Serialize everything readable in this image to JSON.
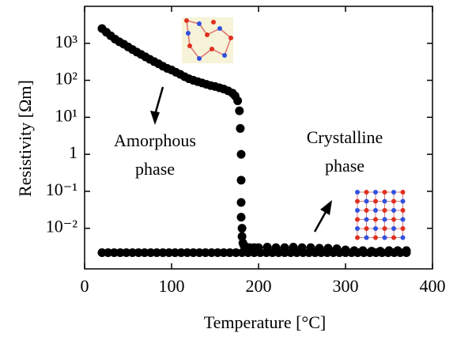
{
  "chart_data": {
    "type": "scatter",
    "xlabel": "Temperature [°C]",
    "ylabel": "Resistivity [Ωm]",
    "annotations": [
      [
        "Amorphous",
        "phase"
      ],
      [
        "Crystalline",
        "phase"
      ]
    ],
    "x": [
      20,
      25,
      30,
      35,
      40,
      45,
      50,
      55,
      60,
      65,
      70,
      75,
      80,
      85,
      90,
      95,
      100,
      105,
      110,
      115,
      120,
      125,
      130,
      135,
      140,
      145,
      150,
      155,
      160,
      165,
      170,
      173,
      176,
      178,
      179,
      180,
      180,
      180,
      180,
      181,
      181,
      182,
      183,
      184,
      186,
      190,
      195,
      200,
      210,
      220,
      230,
      240,
      250,
      260,
      270,
      280,
      290,
      300,
      310,
      320,
      330,
      340,
      350,
      360,
      370,
      20,
      27,
      34,
      41,
      48,
      55,
      62,
      69,
      76,
      83,
      90,
      97,
      104,
      111,
      118,
      125,
      132,
      139,
      146,
      153,
      160,
      167,
      174,
      181,
      188,
      195,
      202,
      209,
      216,
      223,
      230,
      237,
      244,
      251,
      258,
      265,
      272,
      279,
      286,
      293,
      300,
      307,
      314,
      321,
      328,
      335,
      342,
      349,
      356,
      363,
      370
    ],
    "values": [
      2500,
      2000,
      1600,
      1300,
      1100,
      950,
      800,
      680,
      580,
      500,
      430,
      370,
      320,
      280,
      240,
      210,
      190,
      165,
      145,
      125,
      110,
      100,
      92,
      85,
      78,
      72,
      68,
      63,
      58,
      52,
      45,
      38,
      28,
      15,
      5,
      1,
      0.2,
      0.05,
      0.02,
      0.01,
      0.006,
      0.004,
      0.0035,
      0.0033,
      0.0031,
      0.003,
      0.003,
      0.003,
      0.0031,
      0.003,
      0.003,
      0.0031,
      0.003,
      0.003,
      0.0029,
      0.0029,
      0.0028,
      0.0026,
      0.0025,
      0.0025,
      0.0024,
      0.0024,
      0.0025,
      0.0025,
      0.0025,
      0.0022,
      0.0022,
      0.0022,
      0.0022,
      0.0022,
      0.0022,
      0.0022,
      0.0022,
      0.0022,
      0.0022,
      0.0022,
      0.0022,
      0.0022,
      0.0022,
      0.0022,
      0.0022,
      0.0022,
      0.0022,
      0.0022,
      0.0022,
      0.0022,
      0.0022,
      0.0022,
      0.0022,
      0.0022,
      0.0022,
      0.0022,
      0.0022,
      0.0022,
      0.0022,
      0.0022,
      0.0022,
      0.0022,
      0.0022,
      0.0022,
      0.0022,
      0.0022,
      0.0022,
      0.0022,
      0.0022,
      0.0022,
      0.0022,
      0.0022,
      0.0022,
      0.0022,
      0.0022,
      0.0022,
      0.0022,
      0.0022,
      0.0022,
      0.0022
    ],
    "color": "#000000",
    "xlim": [
      0,
      400
    ],
    "xticks": [
      0,
      100,
      200,
      300,
      400
    ],
    "ylim": [
      0.0008,
      10000
    ],
    "yscale": "log",
    "yticks": [
      {
        "value": 1000,
        "label": "10³"
      },
      {
        "value": 100,
        "label": "10²"
      },
      {
        "value": 10,
        "label": "10¹"
      },
      1,
      {
        "value": 0.1,
        "label": "10⁻¹"
      },
      {
        "value": 0.01,
        "label": "10⁻²"
      }
    ]
  }
}
